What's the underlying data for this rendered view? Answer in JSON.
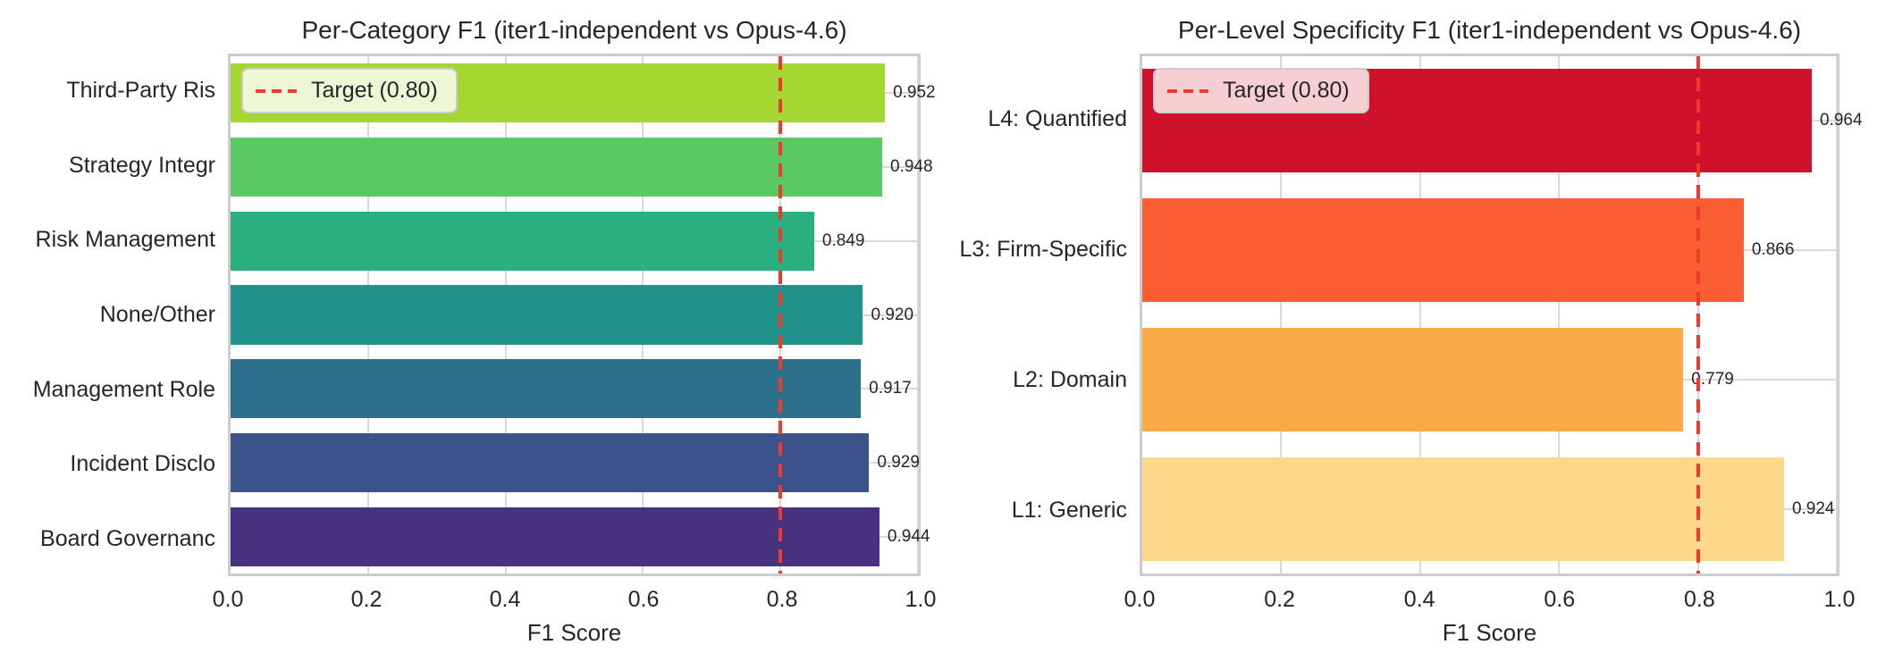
{
  "figure": {
    "background": "#ffffff",
    "axis_spine_color": "#cccccc",
    "grid_color": "#d9d9d9",
    "text_color": "#262626"
  },
  "chart_data": [
    {
      "type": "bar",
      "orientation": "horizontal",
      "title": "Per-Category F1 (iter1-independent vs Opus-4.6)",
      "xlabel": "F1 Score",
      "xlim": [
        0.0,
        1.0
      ],
      "xticks": [
        "0.0",
        "0.2",
        "0.4",
        "0.6",
        "0.8",
        "1.0"
      ],
      "grid": true,
      "legend": {
        "label": "Target (0.80)",
        "line_color": "#ee3b2b",
        "line_style": "dashed",
        "position": "upper left"
      },
      "target_value": 0.8,
      "categories": [
        "Third-Party Ris",
        "Strategy Integr",
        "Risk Management",
        "None/Other",
        "Management Role",
        "Incident Disclo",
        "Board Governanc"
      ],
      "values": [
        0.952,
        0.948,
        0.849,
        0.92,
        0.917,
        0.929,
        0.944
      ],
      "value_labels": [
        "0.952",
        "0.948",
        "0.849",
        "0.920",
        "0.917",
        "0.929",
        "0.944"
      ],
      "bar_colors": [
        "#a5d732",
        "#5bc963",
        "#2ab07f",
        "#21918c",
        "#2d708e",
        "#3b528b",
        "#46327e"
      ]
    },
    {
      "type": "bar",
      "orientation": "horizontal",
      "title": "Per-Level Specificity F1 (iter1-independent vs Opus-4.6)",
      "xlabel": "F1 Score",
      "xlim": [
        0.0,
        1.0
      ],
      "xticks": [
        "0.0",
        "0.2",
        "0.4",
        "0.6",
        "0.8",
        "1.0"
      ],
      "grid": true,
      "legend": {
        "label": "Target (0.80)",
        "line_color": "#ee3b2b",
        "line_style": "dashed",
        "position": "upper left"
      },
      "target_value": 0.8,
      "categories": [
        "L4: Quantified",
        "L3: Firm-Specific",
        "L2: Domain",
        "L1: Generic"
      ],
      "values": [
        0.964,
        0.866,
        0.779,
        0.924
      ],
      "value_labels": [
        "0.964",
        "0.866",
        "0.779",
        "0.924"
      ],
      "bar_colors": [
        "#d0112b",
        "#fa5e32",
        "#fbaa48",
        "#fcd98a"
      ]
    }
  ]
}
